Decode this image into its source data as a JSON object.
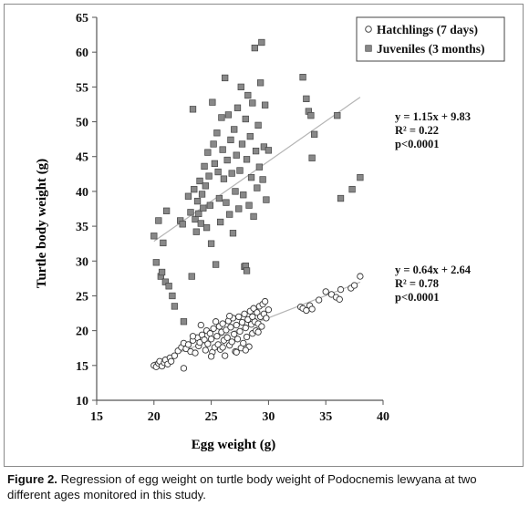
{
  "chart_data": {
    "type": "scatter",
    "xlabel": "Egg weight (g)",
    "ylabel": "Turtle body weight (g)",
    "xlim": [
      15,
      40
    ],
    "ylim": [
      10,
      65
    ],
    "xticks": [
      15,
      20,
      25,
      30,
      35,
      40
    ],
    "yticks": [
      10,
      15,
      20,
      25,
      30,
      35,
      40,
      45,
      50,
      55,
      60,
      65
    ],
    "grid": false,
    "legend_position": "top-right",
    "series": [
      {
        "name": "Hatchlings (7 days)",
        "marker": "open-circle",
        "color": "#ffffff",
        "stroke": "#333333",
        "regression": {
          "slope": 0.64,
          "intercept": 2.64,
          "x_range": [
            20,
            38
          ]
        },
        "annotation": [
          "y = 0.64x + 2.64",
          "R² = 0.78",
          "p<0.0001"
        ],
        "points": [
          [
            20.0,
            15.0
          ],
          [
            20.2,
            14.8
          ],
          [
            20.4,
            15.3
          ],
          [
            20.5,
            15.6
          ],
          [
            20.7,
            14.9
          ],
          [
            20.9,
            15.4
          ],
          [
            21.0,
            15.8
          ],
          [
            21.2,
            15.2
          ],
          [
            21.4,
            16.1
          ],
          [
            21.5,
            15.6
          ],
          [
            21.8,
            16.4
          ],
          [
            22.1,
            17.1
          ],
          [
            22.4,
            17.6
          ],
          [
            22.6,
            18.2
          ],
          [
            22.8,
            17.4
          ],
          [
            22.6,
            14.6
          ],
          [
            23.0,
            18.0
          ],
          [
            23.2,
            17.0
          ],
          [
            23.4,
            18.6
          ],
          [
            23.6,
            16.8
          ],
          [
            23.8,
            19.0
          ],
          [
            23.9,
            17.8
          ],
          [
            24.0,
            18.3
          ],
          [
            24.2,
            19.4
          ],
          [
            24.4,
            18.7
          ],
          [
            24.5,
            17.2
          ],
          [
            24.6,
            20.0
          ],
          [
            24.7,
            18.1
          ],
          [
            24.9,
            19.6
          ],
          [
            25.0,
            18.8
          ],
          [
            25.1,
            16.9
          ],
          [
            25.2,
            20.3
          ],
          [
            25.3,
            17.6
          ],
          [
            25.5,
            19.2
          ],
          [
            25.6,
            18.0
          ],
          [
            25.7,
            20.6
          ],
          [
            25.8,
            17.3
          ],
          [
            25.9,
            19.8
          ],
          [
            26.0,
            21.0
          ],
          [
            26.1,
            18.6
          ],
          [
            26.2,
            16.4
          ],
          [
            26.3,
            20.1
          ],
          [
            26.4,
            19.0
          ],
          [
            26.5,
            21.4
          ],
          [
            26.6,
            17.9
          ],
          [
            26.7,
            20.5
          ],
          [
            26.8,
            18.4
          ],
          [
            26.9,
            21.8
          ],
          [
            27.0,
            19.5
          ],
          [
            27.1,
            17.0
          ],
          [
            27.2,
            20.8
          ],
          [
            27.3,
            18.8
          ],
          [
            27.4,
            22.0
          ],
          [
            27.5,
            19.9
          ],
          [
            27.6,
            17.5
          ],
          [
            27.7,
            21.2
          ],
          [
            27.8,
            18.2
          ],
          [
            27.9,
            22.4
          ],
          [
            28.0,
            20.4
          ],
          [
            28.1,
            19.1
          ],
          [
            28.2,
            21.6
          ],
          [
            28.3,
            17.7
          ],
          [
            28.4,
            22.8
          ],
          [
            28.5,
            20.9
          ],
          [
            28.6,
            19.6
          ],
          [
            28.7,
            23.2
          ],
          [
            28.8,
            21.3
          ],
          [
            28.9,
            20.0
          ],
          [
            29.0,
            22.6
          ],
          [
            29.1,
            21.0
          ],
          [
            29.2,
            23.5
          ],
          [
            29.3,
            22.0
          ],
          [
            29.4,
            20.6
          ],
          [
            29.5,
            23.8
          ],
          [
            29.6,
            22.4
          ],
          [
            29.7,
            24.2
          ],
          [
            29.8,
            21.8
          ],
          [
            30.0,
            23.0
          ],
          [
            23.4,
            19.2
          ],
          [
            24.1,
            20.8
          ],
          [
            25.4,
            21.3
          ],
          [
            26.6,
            22.1
          ],
          [
            27.2,
            16.9
          ],
          [
            28.0,
            17.2
          ],
          [
            25.0,
            16.3
          ],
          [
            26.0,
            17.6
          ],
          [
            28.6,
            22.0
          ],
          [
            29.1,
            19.8
          ],
          [
            32.8,
            23.4
          ],
          [
            33.0,
            23.2
          ],
          [
            33.3,
            22.9
          ],
          [
            33.6,
            23.6
          ],
          [
            33.8,
            23.1
          ],
          [
            34.4,
            24.4
          ],
          [
            35.0,
            25.6
          ],
          [
            35.5,
            25.2
          ],
          [
            35.9,
            24.8
          ],
          [
            36.2,
            24.5
          ],
          [
            36.3,
            25.9
          ],
          [
            37.2,
            26.1
          ],
          [
            37.5,
            26.5
          ],
          [
            38.0,
            27.8
          ]
        ]
      },
      {
        "name": "Juveniles (3 months)",
        "marker": "filled-square",
        "color": "#888888",
        "stroke": "#444444",
        "regression": {
          "slope": 1.15,
          "intercept": 9.83,
          "x_range": [
            20,
            38
          ]
        },
        "annotation": [
          "y = 1.15x + 9.83",
          "R² = 0.22",
          "p<0.0001"
        ],
        "points": [
          [
            20.0,
            33.6
          ],
          [
            20.2,
            29.8
          ],
          [
            20.4,
            35.8
          ],
          [
            20.6,
            27.8
          ],
          [
            20.7,
            28.4
          ],
          [
            20.8,
            32.6
          ],
          [
            21.0,
            27.0
          ],
          [
            21.1,
            37.2
          ],
          [
            21.3,
            26.4
          ],
          [
            21.6,
            25.0
          ],
          [
            21.8,
            23.5
          ],
          [
            22.3,
            35.8
          ],
          [
            22.5,
            35.3
          ],
          [
            22.6,
            21.3
          ],
          [
            23.0,
            39.3
          ],
          [
            23.2,
            37.0
          ],
          [
            23.3,
            27.8
          ],
          [
            23.4,
            51.8
          ],
          [
            23.5,
            40.3
          ],
          [
            23.6,
            36.0
          ],
          [
            23.7,
            34.2
          ],
          [
            23.8,
            38.6
          ],
          [
            23.9,
            36.8
          ],
          [
            24.0,
            41.5
          ],
          [
            24.1,
            35.4
          ],
          [
            24.2,
            39.6
          ],
          [
            24.3,
            37.6
          ],
          [
            24.4,
            43.6
          ],
          [
            24.5,
            40.8
          ],
          [
            24.6,
            34.8
          ],
          [
            24.7,
            45.6
          ],
          [
            24.8,
            42.2
          ],
          [
            24.9,
            38.0
          ],
          [
            25.0,
            32.5
          ],
          [
            25.1,
            52.8
          ],
          [
            25.2,
            46.8
          ],
          [
            25.3,
            44.0
          ],
          [
            25.4,
            29.5
          ],
          [
            25.5,
            48.4
          ],
          [
            25.6,
            42.8
          ],
          [
            25.7,
            39.0
          ],
          [
            25.8,
            35.6
          ],
          [
            25.9,
            50.6
          ],
          [
            26.0,
            46.0
          ],
          [
            26.1,
            41.8
          ],
          [
            26.2,
            56.3
          ],
          [
            26.3,
            38.4
          ],
          [
            26.4,
            44.5
          ],
          [
            26.5,
            51.0
          ],
          [
            26.6,
            36.7
          ],
          [
            26.7,
            47.4
          ],
          [
            26.8,
            42.6
          ],
          [
            26.9,
            34.0
          ],
          [
            27.0,
            48.9
          ],
          [
            27.1,
            40.0
          ],
          [
            27.2,
            45.2
          ],
          [
            27.3,
            52.0
          ],
          [
            27.4,
            37.5
          ],
          [
            27.5,
            43.0
          ],
          [
            27.6,
            55.0
          ],
          [
            27.7,
            46.8
          ],
          [
            27.8,
            39.5
          ],
          [
            27.9,
            29.2
          ],
          [
            28.0,
            50.4
          ],
          [
            28.1,
            44.6
          ],
          [
            28.2,
            53.8
          ],
          [
            28.3,
            38.0
          ],
          [
            28.4,
            47.9
          ],
          [
            28.5,
            42.0
          ],
          [
            28.6,
            52.7
          ],
          [
            28.7,
            36.4
          ],
          [
            28.8,
            60.6
          ],
          [
            28.9,
            45.8
          ],
          [
            29.0,
            40.5
          ],
          [
            29.1,
            49.5
          ],
          [
            29.2,
            43.5
          ],
          [
            29.3,
            55.6
          ],
          [
            29.4,
            61.4
          ],
          [
            29.5,
            41.7
          ],
          [
            29.6,
            46.4
          ],
          [
            29.7,
            52.4
          ],
          [
            29.8,
            38.8
          ],
          [
            30.0,
            45.9
          ],
          [
            28.0,
            29.3
          ],
          [
            28.1,
            28.6
          ],
          [
            33.0,
            56.4
          ],
          [
            33.3,
            53.3
          ],
          [
            33.5,
            51.5
          ],
          [
            33.7,
            50.9
          ],
          [
            33.8,
            44.8
          ],
          [
            34.0,
            48.2
          ],
          [
            36.0,
            50.9
          ],
          [
            36.3,
            39.0
          ],
          [
            37.3,
            40.3
          ],
          [
            38.0,
            42.0
          ]
        ]
      }
    ]
  },
  "figure": {
    "caption_label": "Figure 2.",
    "caption_text": " Regression of egg weight on turtle body weight of Podocnemis lewyana at two different ages monitored in this study."
  }
}
